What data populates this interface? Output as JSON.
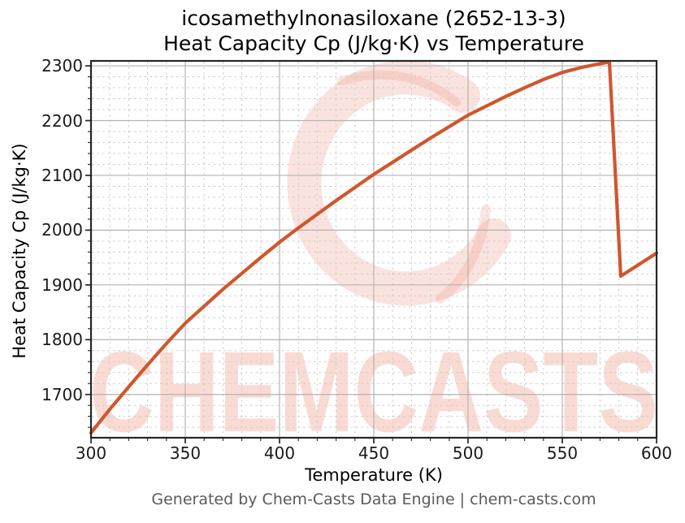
{
  "figure": {
    "title_line1": "icosamethylnonasiloxane (2652-13-3)",
    "title_line2": "Heat Capacity Cp (J/kg·K) vs Temperature",
    "footer_credit": "Generated by Chem-Casts Data Engine | chem-casts.com",
    "watermark_text": "CHEMCASTS"
  },
  "colors": {
    "line": "#d1562c",
    "grid_major": "#b3b3b3",
    "grid_minor": "#cccccc",
    "spine": "#262626",
    "tick": "#262626",
    "tick_label": "#1a1a1a",
    "footer_text": "#5a5a5a",
    "watermark": "#e8725a"
  },
  "chart_data": {
    "type": "line",
    "title": "icosamethylnonasiloxane (2652-13-3)",
    "subtitle": "Heat Capacity Cp (J/kg·K) vs Temperature",
    "xlabel": "Temperature (K)",
    "ylabel": "Heat Capacity Cp (J/kg·K)",
    "xlim": [
      300,
      600
    ],
    "ylim": [
      1621,
      2309
    ],
    "x_ticks": [
      300,
      350,
      400,
      450,
      500,
      550,
      600
    ],
    "y_ticks": [
      1700,
      1800,
      1900,
      2000,
      2100,
      2200,
      2300
    ],
    "x_minor_step": 10,
    "y_minor_step": 20,
    "grid": {
      "major": "solid",
      "minor": "dashed"
    },
    "legend": null,
    "series": [
      {
        "name": "Heat Capacity Cp",
        "color": "#d1562c",
        "x": [
          300,
          310,
          320,
          330,
          340,
          350,
          360,
          370,
          380,
          390,
          400,
          410,
          420,
          430,
          440,
          450,
          460,
          470,
          480,
          490,
          500,
          510,
          520,
          530,
          540,
          550,
          560,
          570,
          575,
          581,
          590,
          600
        ],
        "y": [
          1630,
          1673,
          1714,
          1754,
          1793,
          1830,
          1861,
          1892,
          1921,
          1950,
          1978,
          2004,
          2029,
          2054,
          2078,
          2102,
          2124,
          2146,
          2168,
          2189,
          2210,
          2227,
          2244,
          2260,
          2275,
          2288,
          2297,
          2304,
          2307,
          1916,
          1936,
          1958
        ]
      }
    ],
    "features": {
      "peak": {
        "T": 575,
        "Cp": 2307
      },
      "drop_to": {
        "T": 581,
        "Cp": 1916
      },
      "end": {
        "T": 600,
        "Cp": 1958
      }
    }
  }
}
